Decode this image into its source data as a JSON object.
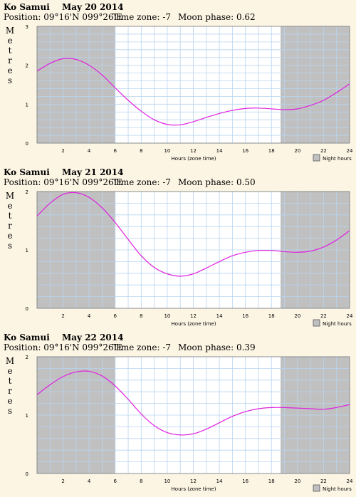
{
  "charts": [
    {
      "location": "Ko Samui",
      "date": "May 20 2014",
      "position": "Position: 09°16'N 099°26'E",
      "timezone": "Time zone: -7",
      "moon": "Moon phase: 0.62",
      "ylabel": "Metres",
      "xlabel": "Hours (zone time)",
      "legend": "Night hours"
    },
    {
      "location": "Ko Samui",
      "date": "May 21 2014",
      "position": "Position: 09°16'N 099°26'E",
      "timezone": "Time zone: -7",
      "moon": "Moon phase: 0.50",
      "ylabel": "Metres",
      "xlabel": "Hours (zone time)",
      "legend": "Night hours"
    },
    {
      "location": "Ko Samui",
      "date": "May 22 2014",
      "position": "Position: 09°16'N 099°26'E",
      "timezone": "Time zone: -7",
      "moon": "Moon phase: 0.39",
      "ylabel": "Metres",
      "xlabel": "Hours (zone time)",
      "legend": "Night hours"
    }
  ],
  "colors": {
    "curve": "#e020e0",
    "night": "#c0c0c0",
    "day": "#ffffff",
    "grid": "#b8d4f0",
    "page": "#fdf5e4"
  },
  "chart_data": [
    {
      "type": "line",
      "x": [
        0,
        1,
        2,
        3,
        4,
        5,
        6,
        7,
        8,
        9,
        10,
        11,
        12,
        13,
        14,
        15,
        16,
        17,
        18,
        19,
        20,
        21,
        22,
        23,
        24
      ],
      "series": [
        {
          "values": [
            1.85,
            2.05,
            2.17,
            2.15,
            2.0,
            1.75,
            1.42,
            1.1,
            0.82,
            0.6,
            0.48,
            0.47,
            0.55,
            0.66,
            0.76,
            0.84,
            0.89,
            0.9,
            0.88,
            0.86,
            0.88,
            0.97,
            1.1,
            1.3,
            1.52
          ]
        }
      ],
      "xlim": [
        0,
        24
      ],
      "ylim": [
        0,
        3
      ],
      "xticks": [
        2,
        4,
        6,
        8,
        10,
        12,
        14,
        16,
        18,
        20,
        22,
        24
      ],
      "yticks": [
        0,
        1,
        2,
        3
      ],
      "night_hours": [
        [
          0,
          6
        ],
        [
          18.7,
          24
        ]
      ]
    },
    {
      "type": "line",
      "x": [
        0,
        1,
        2,
        3,
        4,
        5,
        6,
        7,
        8,
        9,
        10,
        11,
        12,
        13,
        14,
        15,
        16,
        17,
        18,
        19,
        20,
        21,
        22,
        23,
        24
      ],
      "series": [
        {
          "values": [
            1.58,
            1.8,
            1.95,
            1.98,
            1.9,
            1.72,
            1.47,
            1.18,
            0.9,
            0.7,
            0.59,
            0.55,
            0.59,
            0.69,
            0.8,
            0.9,
            0.96,
            0.99,
            0.99,
            0.97,
            0.96,
            0.98,
            1.05,
            1.17,
            1.33
          ]
        }
      ],
      "xlim": [
        0,
        24
      ],
      "ylim": [
        0,
        2
      ],
      "xticks": [
        2,
        4,
        6,
        8,
        10,
        12,
        14,
        16,
        18,
        20,
        22,
        24
      ],
      "yticks": [
        0,
        1,
        2
      ],
      "night_hours": [
        [
          0,
          6
        ],
        [
          18.7,
          24
        ]
      ]
    },
    {
      "type": "line",
      "x": [
        0,
        1,
        2,
        3,
        4,
        5,
        6,
        7,
        8,
        9,
        10,
        11,
        12,
        13,
        14,
        15,
        16,
        17,
        18,
        19,
        20,
        21,
        22,
        23,
        24
      ],
      "series": [
        {
          "values": [
            1.35,
            1.52,
            1.66,
            1.74,
            1.75,
            1.67,
            1.5,
            1.27,
            1.02,
            0.82,
            0.7,
            0.66,
            0.68,
            0.76,
            0.87,
            0.98,
            1.06,
            1.11,
            1.13,
            1.13,
            1.12,
            1.11,
            1.1,
            1.13,
            1.18
          ]
        }
      ],
      "xlim": [
        0,
        24
      ],
      "ylim": [
        0,
        2
      ],
      "xticks": [
        2,
        4,
        6,
        8,
        10,
        12,
        14,
        16,
        18,
        20,
        22,
        24
      ],
      "yticks": [
        0,
        1,
        2
      ],
      "night_hours": [
        [
          0,
          6
        ],
        [
          18.7,
          24
        ]
      ]
    }
  ]
}
